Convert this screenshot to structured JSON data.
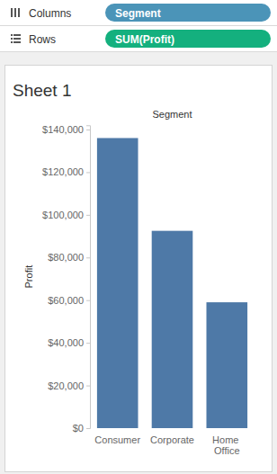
{
  "shelves": [
    {
      "label": "Columns",
      "pill": "Segment"
    },
    {
      "label": "Rows",
      "pill": "SUM(Profit)"
    }
  ],
  "chart_data": {
    "type": "bar",
    "title": "Sheet 1",
    "x_label": "Segment",
    "y_label": "Profit",
    "categories": [
      "Consumer",
      "Corporate",
      "Home Office"
    ],
    "values": [
      136000,
      92500,
      59000
    ],
    "color": "#4e79a7",
    "ylim": [
      0,
      142000
    ],
    "yticks": [
      {
        "value": 0,
        "label": "$0"
      },
      {
        "value": 20000,
        "label": "$20,000"
      },
      {
        "value": 40000,
        "label": "$40,000"
      },
      {
        "value": 60000,
        "label": "$60,000"
      },
      {
        "value": 80000,
        "label": "$80,000"
      },
      {
        "value": 100000,
        "label": "$100,000"
      },
      {
        "value": 120000,
        "label": "$120,000"
      },
      {
        "value": 140000,
        "label": "$140,000"
      }
    ],
    "grid": false
  }
}
